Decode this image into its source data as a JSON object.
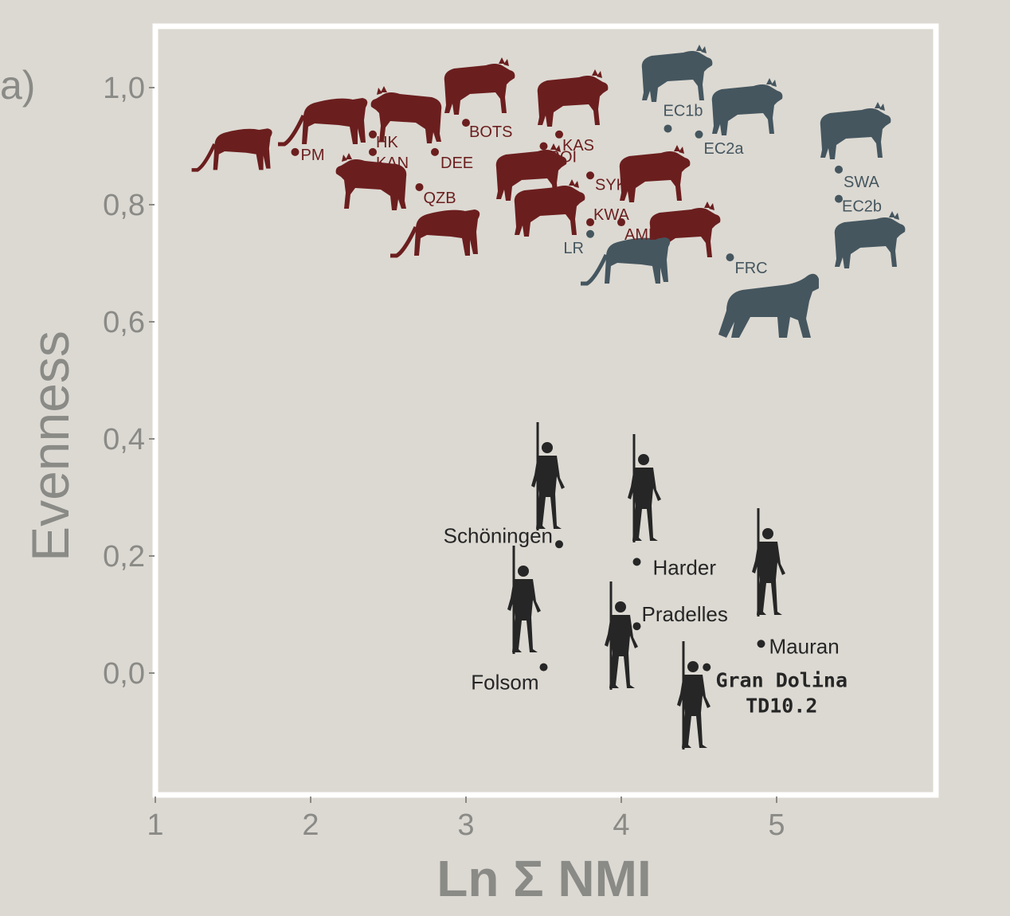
{
  "panel_label": "a)",
  "colors": {
    "background": "#dcd9d2",
    "frame": "#ffffff",
    "axis_text": "#8a8a86",
    "carnivore_red": "#6b1e1e",
    "carnivore_blue": "#45565f",
    "human": "#262626"
  },
  "chart_data": {
    "type": "scatter",
    "xlabel": "Ln Σ NMI",
    "ylabel": "Evenness",
    "xlim": [
      1,
      6
    ],
    "ylim": [
      -0.2,
      1.1
    ],
    "x_ticks": [
      "1",
      "2",
      "3",
      "4",
      "5"
    ],
    "x_tick_values": [
      1,
      2,
      3,
      4,
      5
    ],
    "y_ticks": [
      "0,0",
      "0,2",
      "0,4",
      "0,6",
      "0,8",
      "1,0"
    ],
    "y_tick_values": [
      0.0,
      0.2,
      0.4,
      0.6,
      0.8,
      1.0
    ],
    "grid": false,
    "series": [
      {
        "group": "carnivore-red",
        "color": "#6b1e1e",
        "points": [
          {
            "label": "PM",
            "x": 1.9,
            "y": 0.89
          },
          {
            "label": "HK",
            "x": 2.4,
            "y": 0.92
          },
          {
            "label": "KAN",
            "x": 2.4,
            "y": 0.89
          },
          {
            "label": "DEE",
            "x": 2.8,
            "y": 0.89
          },
          {
            "label": "QZB",
            "x": 2.7,
            "y": 0.83
          },
          {
            "label": "BOTS",
            "x": 3.0,
            "y": 0.94
          },
          {
            "label": "KAS",
            "x": 3.6,
            "y": 0.92
          },
          {
            "label": "ROI",
            "x": 3.5,
            "y": 0.9
          },
          {
            "label": "SYK",
            "x": 3.8,
            "y": 0.85
          },
          {
            "label": "KWA",
            "x": 3.8,
            "y": 0.77
          },
          {
            "label": "AMB",
            "x": 4.0,
            "y": 0.77
          }
        ]
      },
      {
        "group": "carnivore-blue",
        "color": "#45565f",
        "points": [
          {
            "label": "EC1b",
            "x": 4.3,
            "y": 0.93
          },
          {
            "label": "EC2a",
            "x": 4.5,
            "y": 0.92
          },
          {
            "label": "SWA",
            "x": 5.4,
            "y": 0.86
          },
          {
            "label": "EC2b",
            "x": 5.4,
            "y": 0.81
          },
          {
            "label": "LR",
            "x": 3.8,
            "y": 0.75
          },
          {
            "label": "FRC",
            "x": 4.7,
            "y": 0.71
          }
        ]
      },
      {
        "group": "human",
        "color": "#262626",
        "points": [
          {
            "label": "Schöningen",
            "x": 3.6,
            "y": 0.22
          },
          {
            "label": "Harder",
            "x": 4.1,
            "y": 0.19
          },
          {
            "label": "Pradelles",
            "x": 4.1,
            "y": 0.08
          },
          {
            "label": "Mauran",
            "x": 4.9,
            "y": 0.05
          },
          {
            "label": "Folsom",
            "x": 3.5,
            "y": 0.01
          },
          {
            "label": "Gran Dolina TD10.2",
            "x": 4.55,
            "y": 0.01
          }
        ]
      }
    ]
  }
}
